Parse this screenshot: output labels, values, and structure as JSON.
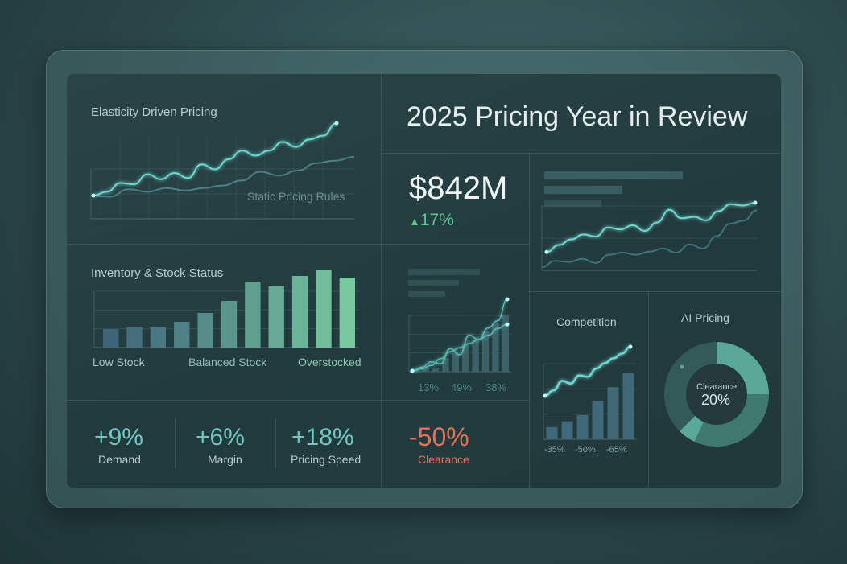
{
  "title": "2025 Pricing Year in Review",
  "elasticity": {
    "title": "Elasticity Driven Pricing",
    "series_label": "Static Pricing Rules",
    "dynamic": [
      0,
      3,
      10,
      9,
      17,
      13,
      18,
      14,
      25,
      21,
      29,
      36,
      32,
      36,
      43,
      39,
      45,
      48,
      58
    ],
    "static": [
      0,
      -1,
      5,
      3,
      6,
      4,
      6,
      8,
      12,
      19,
      16,
      20,
      26,
      28,
      31
    ]
  },
  "inventory": {
    "title": "Inventory & Stock Status",
    "labels": [
      "Low Stock",
      "Balanced Stock",
      "Overstocked"
    ],
    "values": [
      23,
      25,
      25,
      32,
      43,
      58,
      82,
      76,
      89,
      96,
      87
    ]
  },
  "revenue": {
    "value": "$842M",
    "change": "17%",
    "trend": "up"
  },
  "trend_chart": {
    "primary": [
      10,
      20,
      28,
      35,
      32,
      45,
      42,
      48,
      40,
      52,
      70,
      58,
      60,
      55,
      68,
      78,
      76,
      80
    ],
    "secondary": [
      0,
      6,
      5,
      8,
      4,
      12,
      14,
      12,
      15,
      18,
      14,
      22,
      18,
      30,
      42,
      45,
      55
    ]
  },
  "mini_chart": {
    "labels": [
      "13%",
      "49%",
      "38%"
    ],
    "bars": [
      2,
      3,
      3,
      10,
      14,
      20,
      24,
      30,
      36,
      42
    ],
    "line_a": [
      0,
      4,
      10,
      8,
      25,
      18,
      40,
      35,
      48,
      56,
      80
    ],
    "line_b": [
      0,
      3,
      8,
      18,
      28,
      34,
      40,
      46,
      52,
      62,
      68
    ]
  },
  "kpis": [
    {
      "value": "+9%",
      "label": "Demand"
    },
    {
      "value": "+6%",
      "label": "Margin"
    },
    {
      "value": "+18%",
      "label": "Pricing Speed"
    }
  ],
  "clearance": {
    "value": "-50%",
    "label": "Clearance"
  },
  "competition": {
    "title": "Competition",
    "labels": [
      "-35%",
      "-50%",
      "-65%"
    ],
    "bars": [
      15,
      22,
      30,
      47,
      64,
      82
    ],
    "line": [
      0,
      8,
      22,
      18,
      30,
      28,
      40,
      48,
      55,
      62,
      72
    ]
  },
  "ai_pricing": {
    "title": "AI Pricing",
    "center_label": "Clearance",
    "center_value": "20%"
  },
  "colors": {
    "accent": "#6fd6cf",
    "positive": "#5fc58f",
    "negative": "#e0735a"
  }
}
